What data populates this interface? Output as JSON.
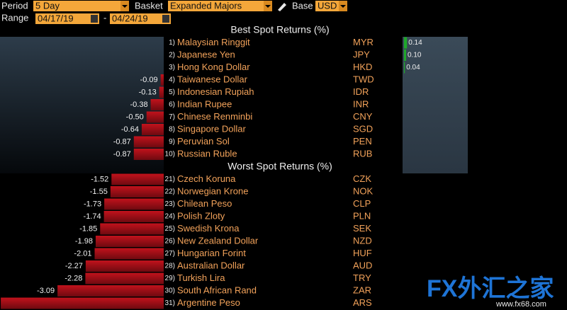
{
  "toolbar": {
    "period_label": "Period",
    "period": "5 Day",
    "basket_label": "Basket",
    "basket": "Expanded Majors",
    "base_label": "Base",
    "base": "USD",
    "range_label": "Range",
    "start": "04/17/19",
    "range_separator": "-",
    "end": "04/24/19"
  },
  "sections": [
    {
      "title": "Best Spot Returns (%)",
      "rows": [
        {
          "rank": "1)",
          "name": "Malaysian Ringgit",
          "code": "MYR",
          "value": 0.14
        },
        {
          "rank": "2)",
          "name": "Japanese Yen",
          "code": "JPY",
          "value": 0.1,
          "label": "0.10"
        },
        {
          "rank": "3)",
          "name": "Hong Kong Dollar",
          "code": "HKD",
          "value": 0.04
        },
        {
          "rank": "4)",
          "name": "Taiwanese Dollar",
          "code": "TWD",
          "value": -0.09
        },
        {
          "rank": "5)",
          "name": "Indonesian Rupiah",
          "code": "IDR",
          "value": -0.13
        },
        {
          "rank": "6)",
          "name": "Indian Rupee",
          "code": "INR",
          "value": -0.38
        },
        {
          "rank": "7)",
          "name": "Chinese Renminbi",
          "code": "CNY",
          "value": -0.5,
          "label": "-0.50"
        },
        {
          "rank": "8)",
          "name": "Singapore Dollar",
          "code": "SGD",
          "value": -0.64
        },
        {
          "rank": "9)",
          "name": "Peruvian Sol",
          "code": "PEN",
          "value": -0.87
        },
        {
          "rank": "10)",
          "name": "Russian Ruble",
          "code": "RUB",
          "value": -0.87
        }
      ]
    },
    {
      "title": "Worst Spot Returns (%)",
      "rows": [
        {
          "rank": "21)",
          "name": "Czech Koruna",
          "code": "CZK",
          "value": -1.52
        },
        {
          "rank": "22)",
          "name": "Norwegian Krone",
          "code": "NOK",
          "value": -1.55
        },
        {
          "rank": "23)",
          "name": "Chilean Peso",
          "code": "CLP",
          "value": -1.73
        },
        {
          "rank": "24)",
          "name": "Polish Zloty",
          "code": "PLN",
          "value": -1.74
        },
        {
          "rank": "25)",
          "name": "Swedish Krona",
          "code": "SEK",
          "value": -1.85
        },
        {
          "rank": "26)",
          "name": "New Zealand Dollar",
          "code": "NZD",
          "value": -1.98
        },
        {
          "rank": "27)",
          "name": "Hungarian Forint",
          "code": "HUF",
          "value": -2.01
        },
        {
          "rank": "28)",
          "name": "Australian Dollar",
          "code": "AUD",
          "value": -2.27
        },
        {
          "rank": "29)",
          "name": "Turkish Lira",
          "code": "TRY",
          "value": -2.28
        },
        {
          "rank": "30)",
          "name": "South African Rand",
          "code": "ZAR",
          "value": -3.09
        },
        {
          "rank": "31)",
          "name": "Argentine Peso",
          "code": "ARS",
          "value": -4.74
        }
      ]
    }
  ],
  "watermark": {
    "brand": "FX外汇之家",
    "url": "www.fx68.com"
  }
}
